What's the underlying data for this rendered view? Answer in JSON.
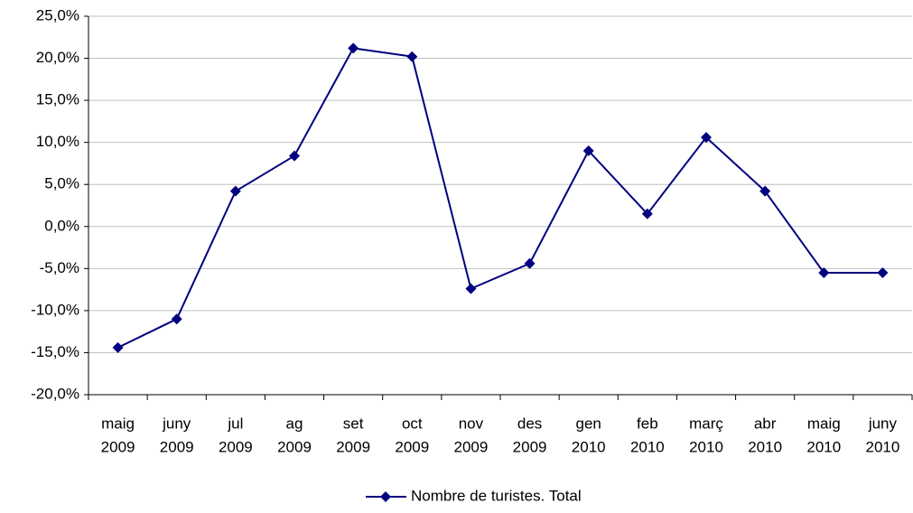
{
  "chart_data": {
    "type": "line",
    "categories": [
      [
        "maig",
        "2009"
      ],
      [
        "juny",
        "2009"
      ],
      [
        "jul",
        "2009"
      ],
      [
        "ag",
        "2009"
      ],
      [
        "set",
        "2009"
      ],
      [
        "oct",
        "2009"
      ],
      [
        "nov",
        "2009"
      ],
      [
        "des",
        "2009"
      ],
      [
        "gen",
        "2010"
      ],
      [
        "feb",
        "2010"
      ],
      [
        "març",
        "2010"
      ],
      [
        "abr",
        "2010"
      ],
      [
        "maig",
        "2010"
      ],
      [
        "juny",
        "2010"
      ]
    ],
    "series": [
      {
        "name": "Nombre de turistes. Total",
        "color": "#000080",
        "values": [
          -14.4,
          -11.0,
          4.2,
          8.4,
          21.2,
          20.2,
          -7.4,
          -4.4,
          9.0,
          1.5,
          10.6,
          4.2,
          -5.5,
          -5.5
        ]
      }
    ],
    "ylim": [
      -20,
      25
    ],
    "yticks": [
      {
        "value": -20,
        "label": "-20,0%"
      },
      {
        "value": -15,
        "label": "-15,0%"
      },
      {
        "value": -10,
        "label": "-10,0%"
      },
      {
        "value": -5,
        "label": "-5,0%"
      },
      {
        "value": 0,
        "label": "0,0%"
      },
      {
        "value": 5,
        "label": "5,0%"
      },
      {
        "value": 10,
        "label": "10,0%"
      },
      {
        "value": 15,
        "label": "15,0%"
      },
      {
        "value": 20,
        "label": "20,0%"
      },
      {
        "value": 25,
        "label": "25,0%"
      }
    ],
    "grid": true,
    "legend": "bottom"
  }
}
